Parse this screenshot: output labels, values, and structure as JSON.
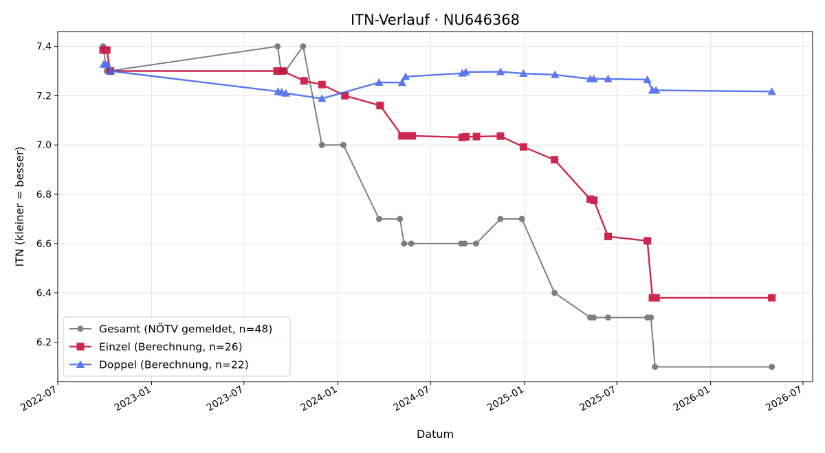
{
  "chart_data": {
    "type": "line",
    "title": "ITN-Verlauf · NU646368",
    "xlabel": "Datum",
    "ylabel": "ITN  (kleiner = besser)",
    "x_axis": {
      "type": "date",
      "range": [
        "2022-07-01",
        "2026-07-20"
      ],
      "ticks": [
        "2022-07",
        "2023-01",
        "2023-07",
        "2024-01",
        "2024-07",
        "2025-01",
        "2025-07",
        "2026-01",
        "2026-07"
      ]
    },
    "y_axis": {
      "range": [
        6.04,
        7.46
      ],
      "ticks": [
        6.2,
        6.4,
        6.6,
        6.8,
        7.0,
        7.2,
        7.4
      ]
    },
    "grid": true,
    "legend": {
      "position": "lower-left"
    },
    "series": [
      {
        "name": "Gesamt (NÖTV gemeldet, n=48)",
        "color": "#555555",
        "marker": "circle",
        "points": [
          [
            "2022-09-28",
            7.4
          ],
          [
            "2022-10-05",
            7.3
          ],
          [
            "2022-10-10",
            7.3
          ],
          [
            "2023-09-05",
            7.4
          ],
          [
            "2023-09-12",
            7.3
          ],
          [
            "2023-09-20",
            7.3
          ],
          [
            "2023-10-25",
            7.4
          ],
          [
            "2023-12-01",
            7.0
          ],
          [
            "2024-01-12",
            7.0
          ],
          [
            "2024-03-22",
            6.7
          ],
          [
            "2024-05-02",
            6.7
          ],
          [
            "2024-05-10",
            6.6
          ],
          [
            "2024-05-24",
            6.6
          ],
          [
            "2024-08-30",
            6.6
          ],
          [
            "2024-09-06",
            6.6
          ],
          [
            "2024-09-28",
            6.6
          ],
          [
            "2024-11-15",
            6.7
          ],
          [
            "2024-12-27",
            6.7
          ],
          [
            "2025-03-01",
            6.4
          ],
          [
            "2025-05-10",
            6.3
          ],
          [
            "2025-05-17",
            6.3
          ],
          [
            "2025-06-14",
            6.3
          ],
          [
            "2025-08-30",
            6.3
          ],
          [
            "2025-09-06",
            6.3
          ],
          [
            "2025-09-14",
            6.1
          ],
          [
            "2026-05-01",
            6.1
          ]
        ]
      },
      {
        "name": "Einzel (Berechnung, n=26)",
        "color": "#c8103a",
        "marker": "square",
        "points": [
          [
            "2022-09-28",
            7.385
          ],
          [
            "2022-10-05",
            7.385
          ],
          [
            "2022-10-12",
            7.3
          ],
          [
            "2023-09-04",
            7.3
          ],
          [
            "2023-09-15",
            7.3
          ],
          [
            "2023-10-27",
            7.26
          ],
          [
            "2023-12-01",
            7.245
          ],
          [
            "2024-01-15",
            7.2
          ],
          [
            "2024-03-24",
            7.16
          ],
          [
            "2024-05-06",
            7.037
          ],
          [
            "2024-05-13",
            7.037
          ],
          [
            "2024-05-26",
            7.037
          ],
          [
            "2024-09-01",
            7.031
          ],
          [
            "2024-09-08",
            7.033
          ],
          [
            "2024-09-29",
            7.034
          ],
          [
            "2024-11-15",
            7.036
          ],
          [
            "2024-12-30",
            6.992
          ],
          [
            "2025-03-01",
            6.94
          ],
          [
            "2025-05-10",
            6.78
          ],
          [
            "2025-05-17",
            6.776
          ],
          [
            "2025-06-14",
            6.629
          ],
          [
            "2025-08-30",
            6.611
          ],
          [
            "2025-09-09",
            6.38
          ],
          [
            "2025-09-16",
            6.38
          ],
          [
            "2026-05-01",
            6.38
          ]
        ]
      },
      {
        "name": "Doppel (Berechnung, n=22)",
        "color": "#4466ee",
        "marker": "triangle",
        "points": [
          [
            "2022-09-29",
            7.327
          ],
          [
            "2022-10-06",
            7.326
          ],
          [
            "2022-10-13",
            7.3
          ],
          [
            "2023-09-06",
            7.217
          ],
          [
            "2023-09-13",
            7.214
          ],
          [
            "2023-09-21",
            7.21
          ],
          [
            "2023-12-01",
            7.188
          ],
          [
            "2024-03-22",
            7.254
          ],
          [
            "2024-05-06",
            7.253
          ],
          [
            "2024-05-13",
            7.277
          ],
          [
            "2024-09-01",
            7.291
          ],
          [
            "2024-09-08",
            7.296
          ],
          [
            "2024-11-15",
            7.297
          ],
          [
            "2024-12-30",
            7.29
          ],
          [
            "2025-03-02",
            7.285
          ],
          [
            "2025-05-10",
            7.268
          ],
          [
            "2025-05-17",
            7.268
          ],
          [
            "2025-06-14",
            7.268
          ],
          [
            "2025-08-30",
            7.265
          ],
          [
            "2025-09-09",
            7.222
          ],
          [
            "2025-09-16",
            7.222
          ],
          [
            "2026-05-01",
            7.217
          ]
        ]
      }
    ]
  }
}
